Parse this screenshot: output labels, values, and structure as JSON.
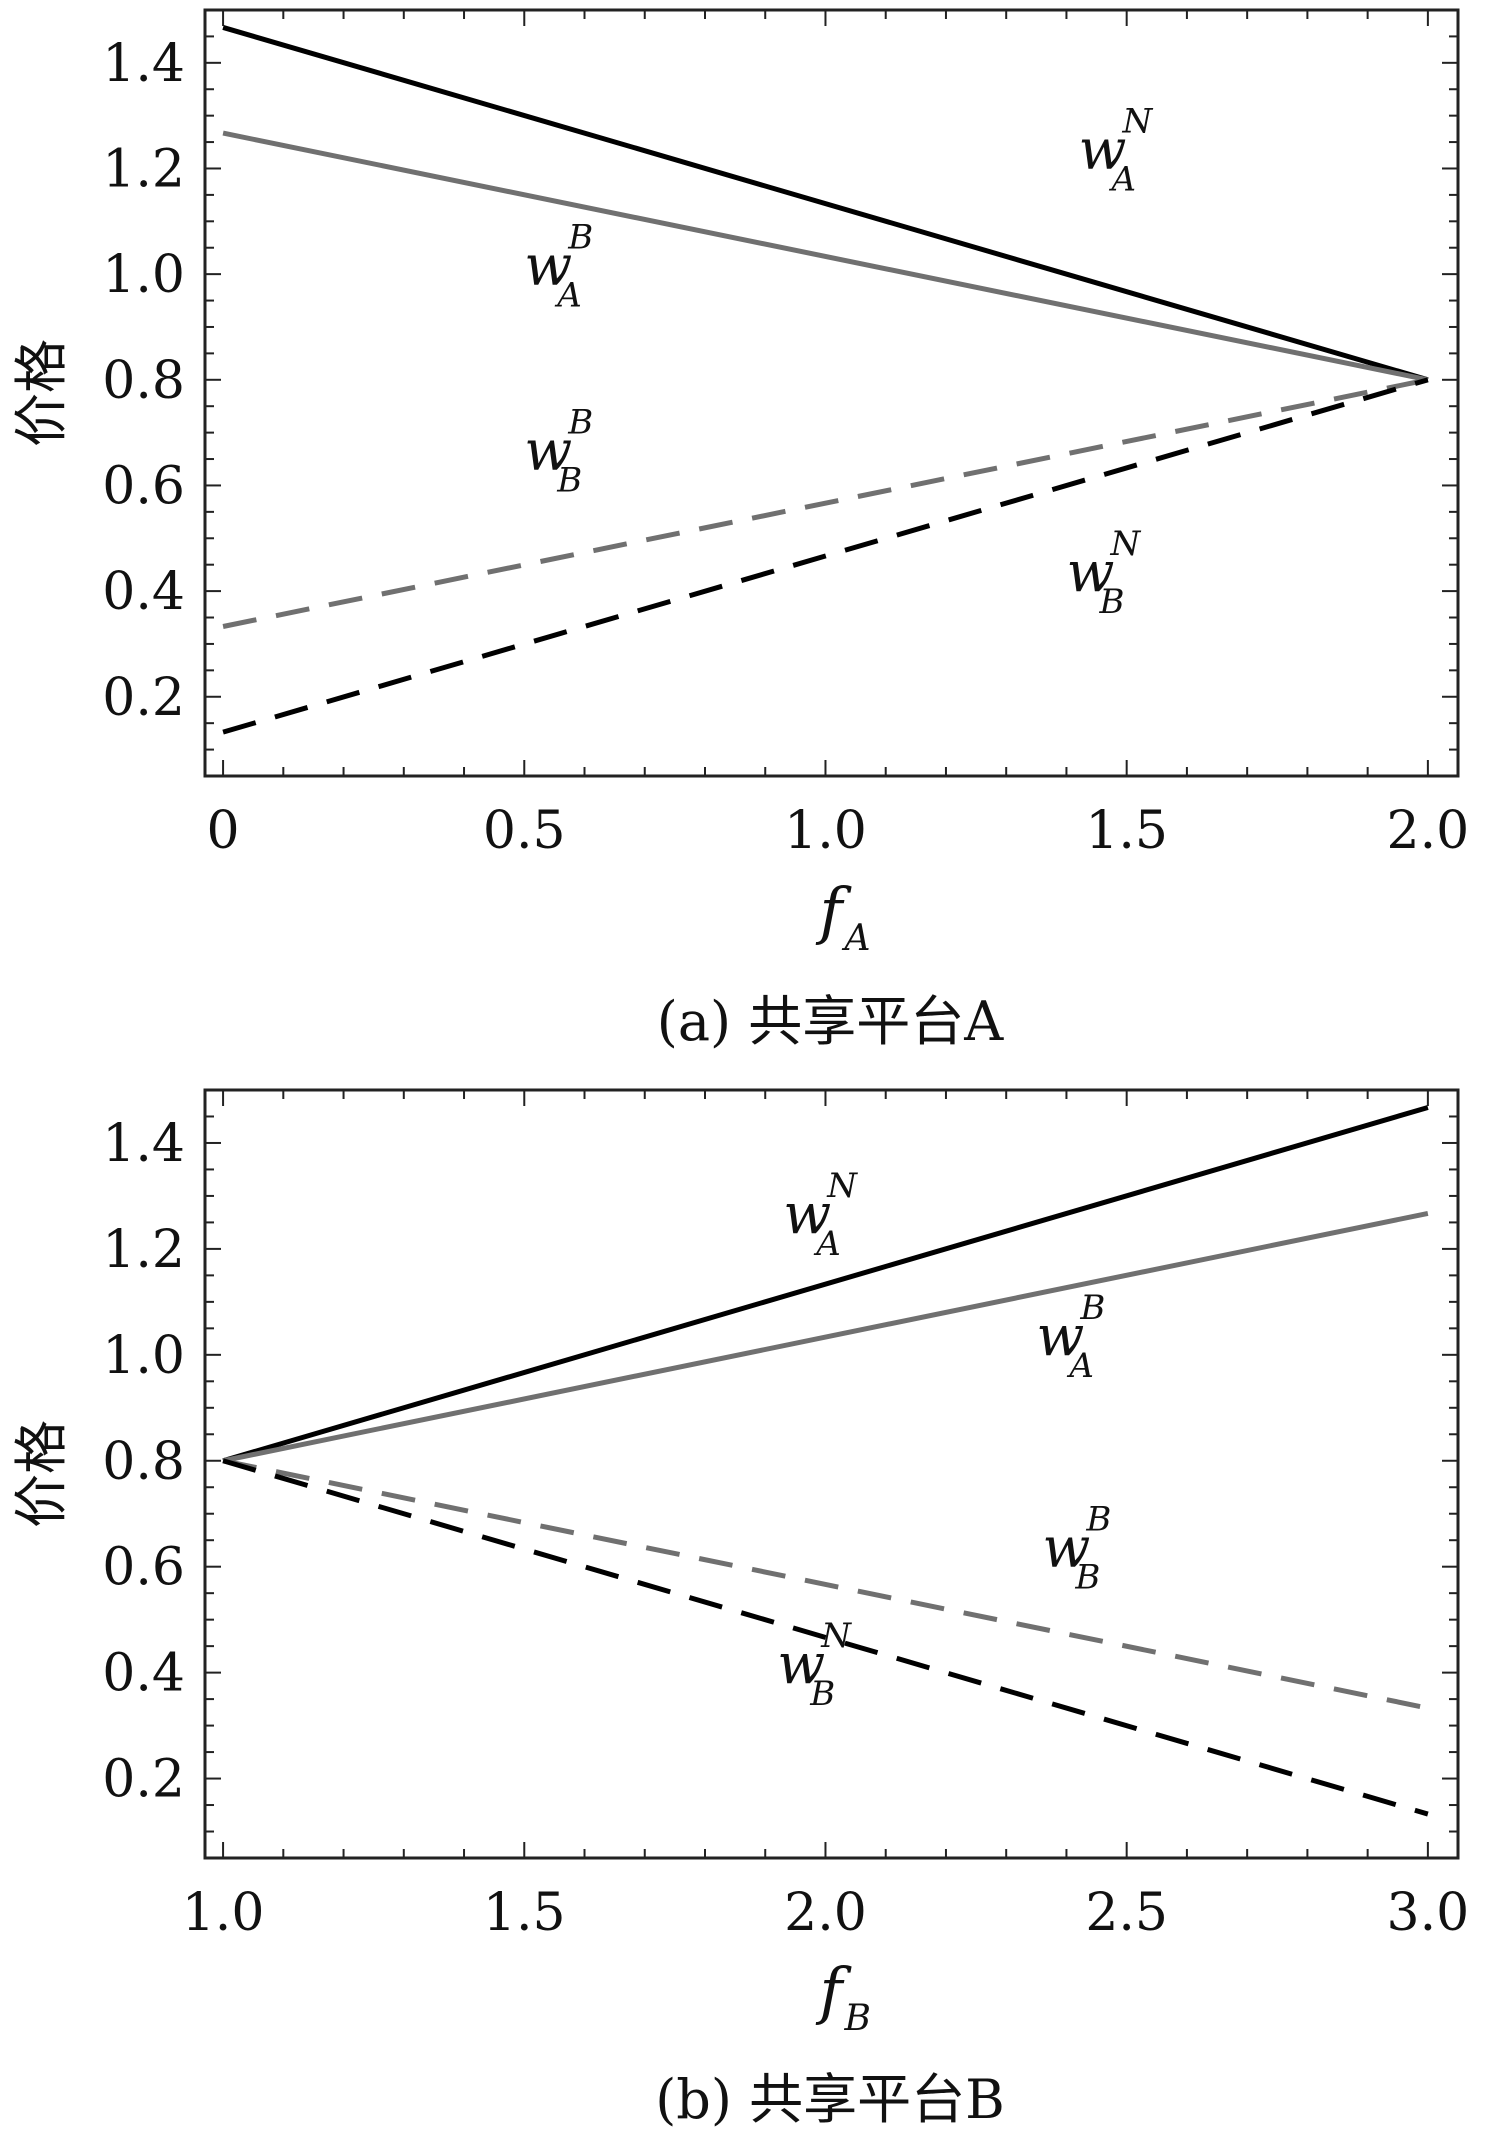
{
  "chart_data": [
    {
      "type": "line",
      "caption": "(a) 共享平台A",
      "xlabel_main": "f",
      "xlabel_sub": "A",
      "ylabel": "价格",
      "xlim": [
        -0.03,
        2.05
      ],
      "ylim": [
        0.05,
        1.5
      ],
      "xticks": [
        0,
        0.5,
        1.0,
        1.5,
        2.0
      ],
      "xtick_labels": [
        "0",
        "0.5",
        "1.0",
        "1.5",
        "2.0"
      ],
      "yticks": [
        0.2,
        0.4,
        0.6,
        0.8,
        1.0,
        1.2,
        1.4
      ],
      "ytick_labels": [
        "0.2",
        "0.4",
        "0.6",
        "0.8",
        "1.0",
        "1.2",
        "1.4"
      ],
      "grid": false,
      "series": [
        {
          "name_main": "w",
          "name_sup": "N",
          "name_sub": "A",
          "x": [
            0,
            2.0
          ],
          "y": [
            1.467,
            0.8
          ],
          "color": "#000000",
          "dash": "solid",
          "label_at": [
            1.42,
            1.2
          ]
        },
        {
          "name_main": "w",
          "name_sup": "B",
          "name_sub": "A",
          "x": [
            0,
            2.0
          ],
          "y": [
            1.267,
            0.8
          ],
          "color": "#707070",
          "dash": "solid",
          "label_at": [
            0.5,
            0.98
          ]
        },
        {
          "name_main": "w",
          "name_sup": "B",
          "name_sub": "B",
          "x": [
            0,
            2.0
          ],
          "y": [
            0.333,
            0.8
          ],
          "color": "#707070",
          "dash": "dashed",
          "label_at": [
            0.5,
            0.63
          ]
        },
        {
          "name_main": "w",
          "name_sup": "N",
          "name_sub": "B",
          "x": [
            0,
            2.0
          ],
          "y": [
            0.133,
            0.8
          ],
          "color": "#000000",
          "dash": "dashed",
          "label_at": [
            1.4,
            0.4
          ]
        }
      ]
    },
    {
      "type": "line",
      "caption": "(b) 共享平台B",
      "xlabel_main": "f",
      "xlabel_sub": "B",
      "ylabel": "价格",
      "xlim": [
        0.97,
        3.05
      ],
      "ylim": [
        0.05,
        1.5
      ],
      "xticks": [
        1.0,
        1.5,
        2.0,
        2.5,
        3.0
      ],
      "xtick_labels": [
        "1.0",
        "1.5",
        "2.0",
        "2.5",
        "3.0"
      ],
      "yticks": [
        0.2,
        0.4,
        0.6,
        0.8,
        1.0,
        1.2,
        1.4
      ],
      "ytick_labels": [
        "0.2",
        "0.4",
        "0.6",
        "0.8",
        "1.0",
        "1.2",
        "1.4"
      ],
      "grid": false,
      "series": [
        {
          "name_main": "w",
          "name_sup": "N",
          "name_sub": "A",
          "x": [
            1.0,
            3.0
          ],
          "y": [
            0.8,
            1.467
          ],
          "color": "#000000",
          "dash": "solid",
          "label_at": [
            1.93,
            1.23
          ]
        },
        {
          "name_main": "w",
          "name_sup": "B",
          "name_sub": "A",
          "x": [
            1.0,
            3.0
          ],
          "y": [
            0.8,
            1.267
          ],
          "color": "#707070",
          "dash": "solid",
          "label_at": [
            2.35,
            1.0
          ]
        },
        {
          "name_main": "w",
          "name_sup": "B",
          "name_sub": "B",
          "x": [
            1.0,
            3.0
          ],
          "y": [
            0.8,
            0.333
          ],
          "color": "#707070",
          "dash": "dashed",
          "label_at": [
            2.36,
            0.6
          ]
        },
        {
          "name_main": "w",
          "name_sup": "N",
          "name_sub": "B",
          "x": [
            1.0,
            3.0
          ],
          "y": [
            0.8,
            0.133
          ],
          "color": "#000000",
          "dash": "dashed",
          "label_at": [
            1.92,
            0.38
          ]
        }
      ]
    }
  ]
}
